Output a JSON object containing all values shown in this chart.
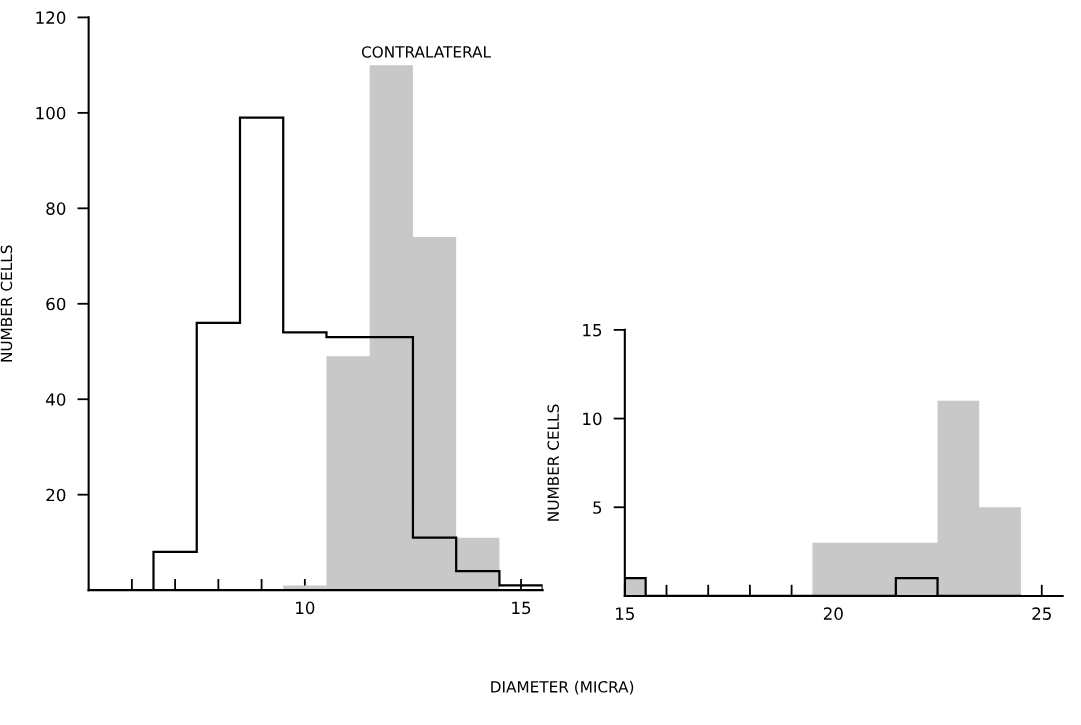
{
  "chart_data": [
    {
      "type": "histogram",
      "title": "CONTRALATERAL",
      "xlabel": "DIAMETER (MICRA)",
      "ylabel": "NUMBER CELLS",
      "xlim": [
        5,
        15.5
      ],
      "xticks": [
        {
          "value": 6,
          "label": null
        },
        {
          "value": 7,
          "label": null
        },
        {
          "value": 8,
          "label": null
        },
        {
          "value": 9,
          "label": null
        },
        10,
        {
          "value": 11,
          "label": null
        },
        {
          "value": 12,
          "label": null
        },
        {
          "value": 13,
          "label": null
        },
        {
          "value": 14,
          "label": null
        },
        15
      ],
      "ylim": [
        0,
        120
      ],
      "yticks": [
        20,
        40,
        60,
        80,
        100,
        120
      ],
      "grid": false,
      "legend": false,
      "bins": [
        6.5,
        7.5,
        8.5,
        9.5,
        10.5,
        11.5,
        12.5,
        13.5,
        14.5,
        15.5
      ],
      "series": [
        {
          "color": "#c8c8c8",
          "values": [
            0,
            0,
            0,
            1,
            49,
            110,
            74,
            11,
            0
          ]
        },
        {
          "color": "#000000",
          "line_style": "solid",
          "values": [
            8,
            56,
            99,
            54,
            53,
            53,
            11,
            4,
            1
          ]
        }
      ]
    },
    {
      "type": "histogram",
      "ylabel": "NUMBER CELLS",
      "xlim": [
        15,
        25.5
      ],
      "xticks": [
        15,
        {
          "value": 16,
          "label": null
        },
        {
          "value": 17,
          "label": null
        },
        {
          "value": 18,
          "label": null
        },
        {
          "value": 19,
          "label": null
        },
        20,
        {
          "value": 21,
          "label": null
        },
        {
          "value": 22,
          "label": null
        },
        {
          "value": 23,
          "label": null
        },
        {
          "value": 24,
          "label": null
        },
        25
      ],
      "ylim": [
        0,
        15
      ],
      "yticks": [
        5,
        10,
        15
      ],
      "grid": false,
      "legend": false,
      "bins": [
        15,
        15.5,
        16.5,
        17.5,
        18.5,
        19.5,
        20.5,
        21.5,
        22.5,
        23.5,
        24.5
      ],
      "series": [
        {
          "color": "#c8c8c8",
          "values": [
            1,
            0,
            0,
            0,
            0,
            3,
            3,
            3,
            11,
            5
          ]
        },
        {
          "color": "#000000",
          "line_style": "solid",
          "values": [
            1,
            0,
            0,
            0,
            0,
            0,
            0,
            1,
            0,
            0
          ]
        }
      ]
    }
  ]
}
